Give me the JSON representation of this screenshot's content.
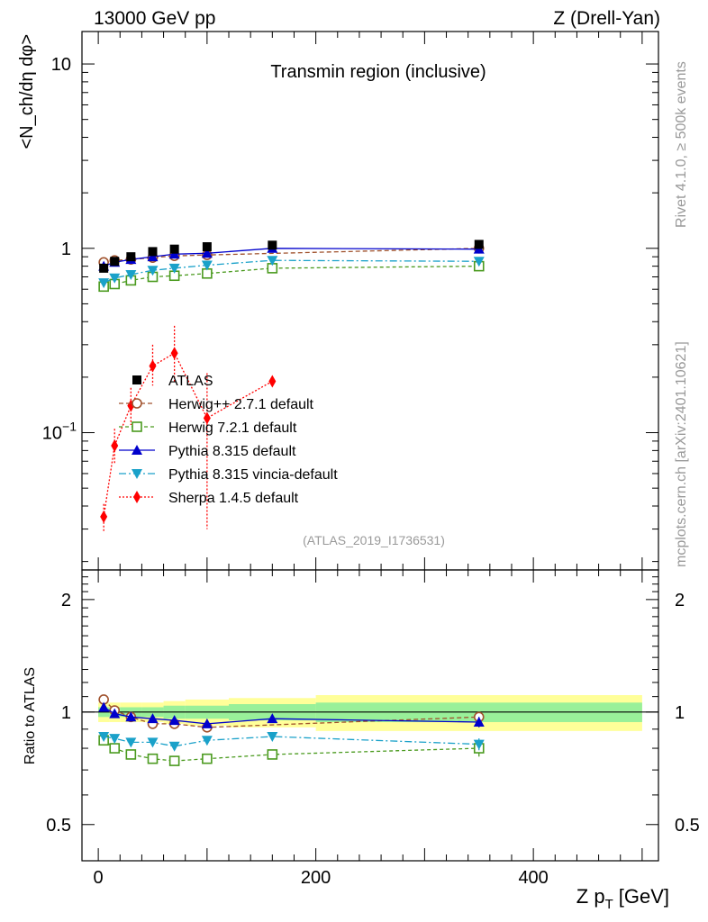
{
  "header": {
    "left": "13000 GeV pp",
    "right": "Z (Drell-Yan)"
  },
  "side_text": {
    "rivet": "Rivet 4.1.0, ≥ 500k events",
    "mcplots": "mcplots.cern.ch [arXiv:2401.10621]"
  },
  "chart_data": {
    "type": "line",
    "title": "Transmin region (inclusive)",
    "analysis_id": "(ATLAS_2019_I1736531)",
    "xlabel": "Z p_T [GeV]",
    "xlabel_main": "Z p",
    "xlabel_sub": "T",
    "xlabel_unit": "[GeV]",
    "ylabel": "<N_ch/dη dφ>",
    "ratio_ylabel": "Ratio to ATLAS",
    "xlim": [
      -15,
      515
    ],
    "ylim": [
      0.018,
      15
    ],
    "yscale": "log",
    "ratio_ylim": [
      0.4,
      2.4
    ],
    "x_ticks": [
      0,
      200,
      400
    ],
    "y_ticks": [
      {
        "value": 10,
        "label": "10"
      },
      {
        "value": 1,
        "label": "1"
      },
      {
        "value": 0.1,
        "label": "10",
        "sup": "−1"
      }
    ],
    "ratio_ticks": [
      {
        "value": 2,
        "label": "2"
      },
      {
        "value": 1,
        "label": "1"
      },
      {
        "value": 0.5,
        "label": "0.5"
      }
    ],
    "legend": {
      "entries": [
        "ATLAS",
        "Herwig++ 2.7.1 default",
        "Herwig 7.2.1 default",
        "Pythia 8.315 default",
        "Pythia 8.315 vincia-default",
        "Sherpa 1.4.5 default"
      ]
    },
    "data": {
      "name": "ATLAS",
      "color": "#000000",
      "x": [
        5,
        15,
        30,
        50,
        70,
        100,
        160,
        350
      ],
      "values": [
        0.78,
        0.85,
        0.9,
        0.96,
        0.99,
        1.02,
        1.04,
        1.05
      ],
      "band_edges": [
        0,
        10,
        20,
        40,
        60,
        80,
        120,
        200,
        500
      ],
      "band_green": [
        0.03,
        0.03,
        0.03,
        0.03,
        0.04,
        0.04,
        0.05,
        0.06
      ],
      "band_yellow": [
        0.06,
        0.06,
        0.06,
        0.06,
        0.07,
        0.08,
        0.09,
        0.11
      ]
    },
    "series": [
      {
        "name": "Herwig++ 2.7.1 default",
        "color": "#a0522d",
        "marker": "open-circle",
        "dash": "5,3",
        "x": [
          5,
          15,
          30,
          50,
          70,
          100,
          350
        ],
        "values": [
          0.84,
          0.86,
          0.87,
          0.89,
          0.91,
          0.92,
          1.0
        ],
        "ratio": [
          1.08,
          1.01,
          0.97,
          0.93,
          0.93,
          0.91,
          0.97
        ]
      },
      {
        "name": "Herwig 7.2.1 default",
        "color": "#4a9a1e",
        "marker": "open-square",
        "dash": "4,3",
        "x": [
          5,
          15,
          30,
          50,
          70,
          100,
          160,
          350
        ],
        "values": [
          0.62,
          0.64,
          0.67,
          0.7,
          0.71,
          0.73,
          0.78,
          0.8
        ],
        "ratio": [
          0.84,
          0.8,
          0.77,
          0.75,
          0.74,
          0.75,
          0.77,
          0.8
        ],
        "ratio_err": [
          0,
          0,
          0,
          0,
          0,
          0,
          0,
          0.04
        ]
      },
      {
        "name": "Pythia 8.315 default",
        "color": "#0000cc",
        "marker": "triangle-up",
        "dash": "",
        "x": [
          5,
          15,
          30,
          50,
          70,
          100,
          160,
          350
        ],
        "values": [
          0.8,
          0.84,
          0.87,
          0.9,
          0.93,
          0.94,
          1.0,
          0.99
        ],
        "ratio": [
          1.03,
          0.99,
          0.97,
          0.96,
          0.95,
          0.93,
          0.96,
          0.94
        ],
        "ratio_err": [
          0,
          0,
          0,
          0,
          0,
          0,
          0,
          0.03
        ]
      },
      {
        "name": "Pythia 8.315 vincia-default",
        "color": "#1aa1c9",
        "marker": "triangle-down",
        "dash": "8,3,2,3",
        "x": [
          5,
          15,
          30,
          50,
          70,
          100,
          160,
          350
        ],
        "values": [
          0.65,
          0.69,
          0.72,
          0.76,
          0.78,
          0.81,
          0.86,
          0.85
        ],
        "ratio": [
          0.86,
          0.85,
          0.83,
          0.83,
          0.81,
          0.84,
          0.86,
          0.82
        ],
        "ratio_err": [
          0,
          0,
          0,
          0,
          0,
          0,
          0,
          0.03
        ]
      },
      {
        "name": "Sherpa 1.4.5 default",
        "color": "#ff0000",
        "marker": "diamond",
        "dash": "2,2",
        "x": [
          5,
          15,
          30,
          50,
          70,
          100,
          160
        ],
        "values": [
          0.035,
          0.085,
          0.14,
          0.23,
          0.27,
          0.12,
          0.19
        ],
        "err_lo": [
          0.006,
          0.018,
          0.03,
          0.05,
          0.08,
          0.09,
          0.0
        ],
        "err_hi": [
          0.006,
          0.02,
          0.035,
          0.07,
          0.11,
          0.09,
          0.0
        ]
      }
    ]
  }
}
